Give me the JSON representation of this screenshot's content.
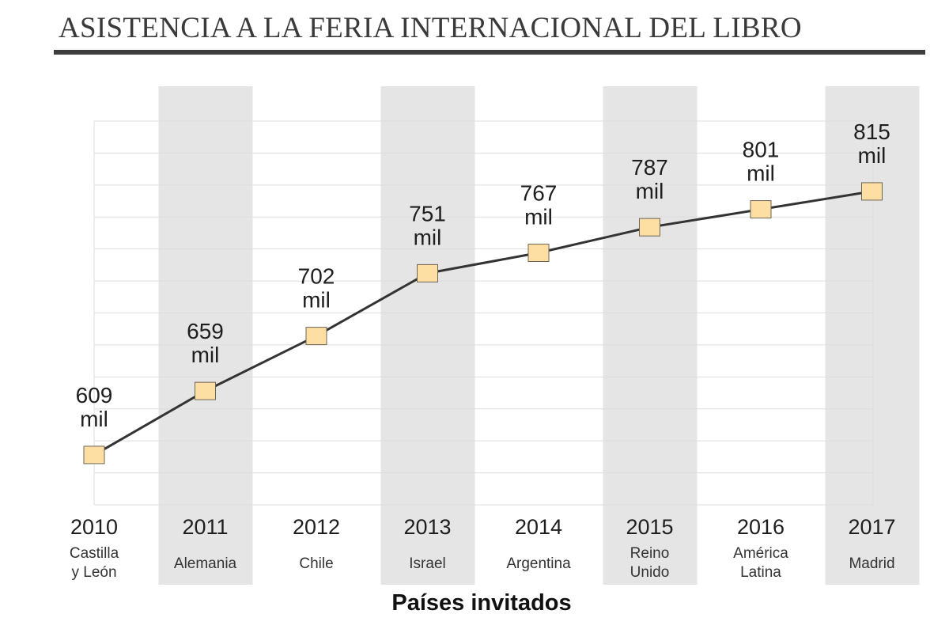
{
  "title": "ASISTENCIA A LA FERIA INTERNACIONAL DEL LIBRO",
  "chart_data": {
    "type": "line",
    "title": "ASISTENCIA A LA FERIA INTERNACIONAL DEL LIBRO",
    "xlabel": "Países invitados",
    "ylabel": "",
    "categories": [
      "2010",
      "2011",
      "2012",
      "2013",
      "2014",
      "2015",
      "2016",
      "2017"
    ],
    "category_sublabels": [
      [
        "Castilla",
        "y León"
      ],
      [
        "Alemania"
      ],
      [
        "Chile"
      ],
      [
        "Israel"
      ],
      [
        "Argentina"
      ],
      [
        "Reino",
        "Unido"
      ],
      [
        "América",
        "Latina"
      ],
      [
        "Madrid"
      ]
    ],
    "values": [
      609,
      659,
      702,
      751,
      767,
      787,
      801,
      815
    ],
    "data_labels": [
      [
        "609",
        "mil"
      ],
      [
        "659",
        "mil"
      ],
      [
        "702",
        "mil"
      ],
      [
        "751",
        "mil"
      ],
      [
        "767",
        "mil"
      ],
      [
        "787",
        "mil"
      ],
      [
        "801",
        "mil"
      ],
      [
        "815",
        "mil"
      ]
    ],
    "unit": "mil",
    "ylim": [
      570,
      870
    ],
    "grid": true,
    "legend": "none",
    "colors": {
      "line": "#333333",
      "marker_fill": "#fddea3",
      "marker_stroke": "#6e6455",
      "band": "#e5e5e5",
      "grid": "#dddddd"
    }
  }
}
